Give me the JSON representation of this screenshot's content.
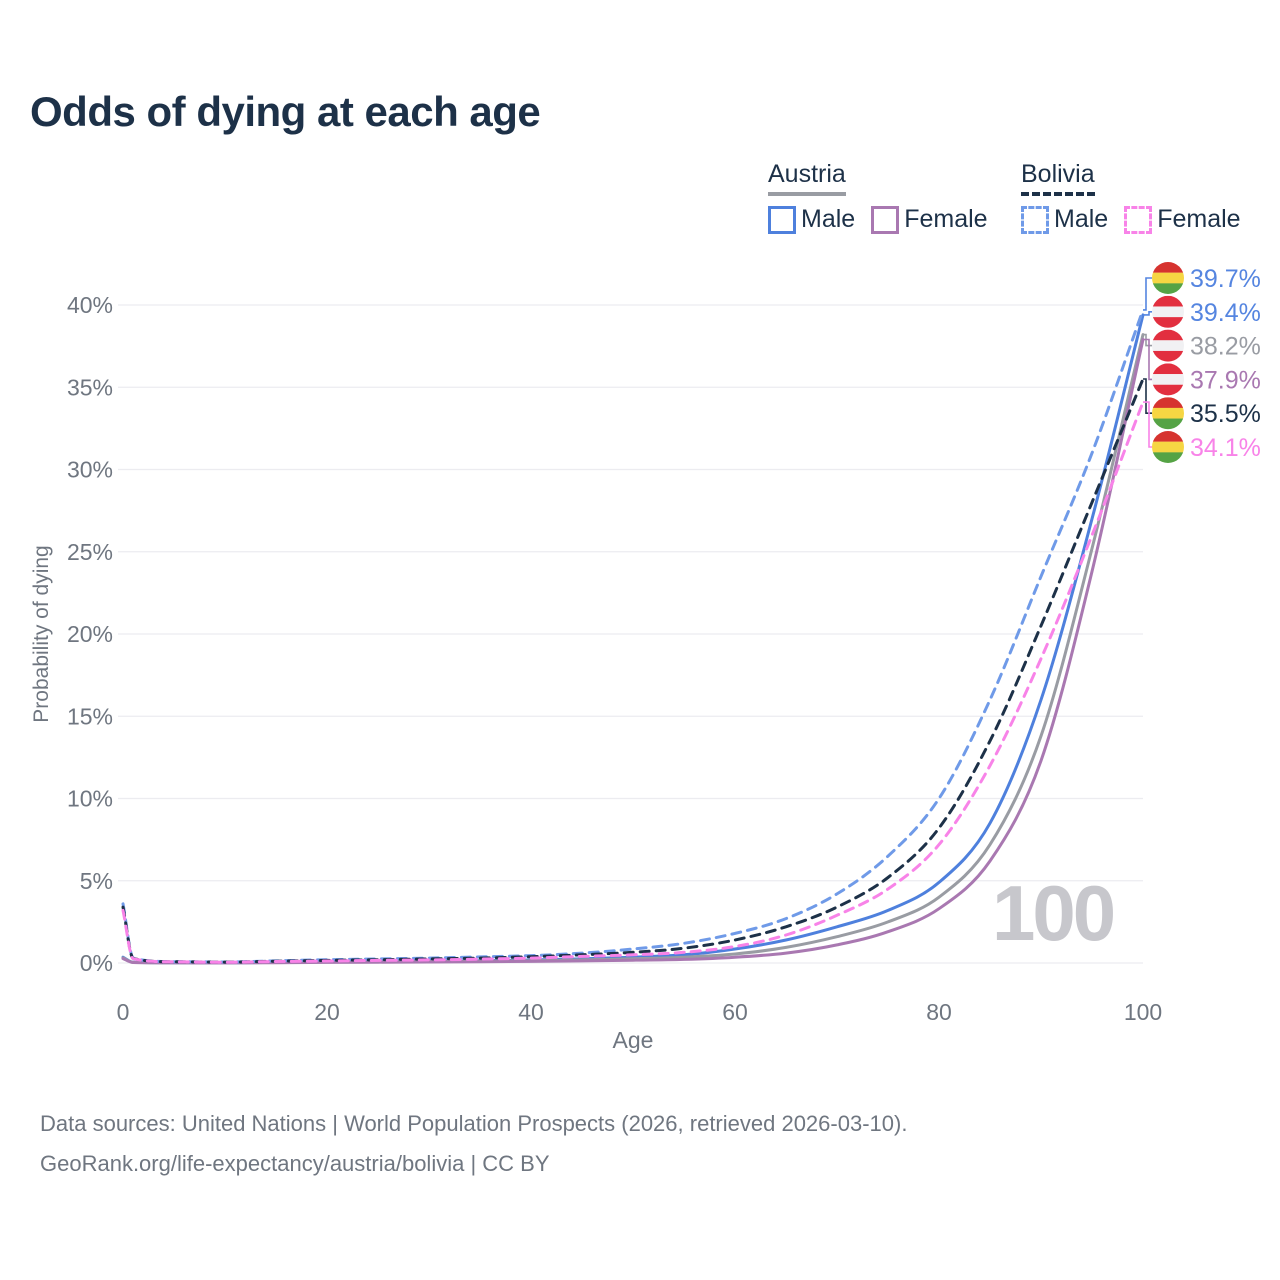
{
  "title": "Odds of dying at each age",
  "watermark": "100",
  "footer": {
    "line1": "Data sources: United Nations | World Population Prospects (2026, retrieved 2026-03-10).",
    "line2": "GeoRank.org/life-expectancy/austria/bolivia | CC BY"
  },
  "legend": {
    "groups": [
      {
        "label": "Austria",
        "underline": "solid",
        "underline_color": "#999ca3",
        "items": [
          {
            "label": "Male",
            "color": "#4e80dd",
            "dashed": false
          },
          {
            "label": "Female",
            "color": "#a978b1",
            "dashed": false
          }
        ]
      },
      {
        "label": "Bolivia",
        "underline": "dashed",
        "underline_color": "#1d3148",
        "items": [
          {
            "label": "Male",
            "color": "#6f9ae8",
            "dashed": true
          },
          {
            "label": "Female",
            "color": "#f883e8",
            "dashed": true
          }
        ]
      }
    ]
  },
  "flags": {
    "bolivia": [
      "#d6332f",
      "#f6d643",
      "#55a345"
    ],
    "austria": [
      "#e22f3f",
      "#f1f1f3",
      "#e22f3f"
    ]
  },
  "chart_data": {
    "type": "line",
    "title": "Odds of dying at each age",
    "xlabel": "Age",
    "ylabel": "Probability of dying",
    "xlim": [
      0,
      100
    ],
    "ylim": [
      0,
      40
    ],
    "xticks": [
      0,
      20,
      40,
      60,
      80,
      100
    ],
    "yticks": [
      0,
      5,
      10,
      15,
      20,
      25,
      30,
      35,
      40
    ],
    "ytick_suffix": "%",
    "grid": true,
    "legend_position": "top-right",
    "x": [
      0,
      1,
      5,
      10,
      15,
      20,
      25,
      30,
      35,
      40,
      45,
      50,
      55,
      60,
      65,
      70,
      75,
      80,
      85,
      90,
      95,
      100
    ],
    "series": [
      {
        "name": "Austria male",
        "country": "Austria",
        "sex": "Male",
        "style": "solid",
        "color": "#4e80dd",
        "values": [
          0.35,
          0.04,
          0.015,
          0.012,
          0.04,
          0.08,
          0.1,
          0.12,
          0.14,
          0.18,
          0.25,
          0.35,
          0.5,
          0.85,
          1.4,
          2.2,
          3.2,
          4.9,
          8.5,
          16.0,
          27.0,
          39.4
        ],
        "end_label": "39.4%"
      },
      {
        "name": "Austria all",
        "country": "Austria",
        "sex": "All",
        "style": "solid",
        "color": "#999ca3",
        "values": [
          0.31,
          0.035,
          0.013,
          0.01,
          0.03,
          0.06,
          0.075,
          0.09,
          0.11,
          0.14,
          0.19,
          0.26,
          0.35,
          0.55,
          0.95,
          1.6,
          2.5,
          4.0,
          7.2,
          13.8,
          25.2,
          38.2
        ],
        "end_label": "38.2%"
      },
      {
        "name": "Austria female",
        "country": "Austria",
        "sex": "Female",
        "style": "solid",
        "color": "#a978b1",
        "values": [
          0.27,
          0.03,
          0.011,
          0.009,
          0.02,
          0.035,
          0.05,
          0.06,
          0.08,
          0.1,
          0.13,
          0.17,
          0.22,
          0.35,
          0.6,
          1.1,
          1.9,
          3.3,
          6.2,
          12.3,
          23.8,
          37.9
        ],
        "end_label": "37.9%"
      },
      {
        "name": "Bolivia male",
        "country": "Bolivia",
        "sex": "Male",
        "style": "dashed",
        "color": "#6f9ae8",
        "values": [
          3.6,
          0.3,
          0.08,
          0.06,
          0.13,
          0.2,
          0.25,
          0.3,
          0.37,
          0.45,
          0.6,
          0.85,
          1.2,
          1.8,
          2.7,
          4.2,
          6.5,
          10.0,
          16.0,
          23.5,
          31.0,
          39.7
        ],
        "end_label": "39.7%"
      },
      {
        "name": "Bolivia all",
        "country": "Bolivia",
        "sex": "All",
        "style": "dashed",
        "color": "#1d3148",
        "values": [
          3.4,
          0.28,
          0.075,
          0.055,
          0.11,
          0.16,
          0.2,
          0.25,
          0.3,
          0.38,
          0.5,
          0.65,
          0.9,
          1.4,
          2.2,
          3.4,
          5.2,
          8.2,
          13.5,
          20.5,
          28.0,
          35.5
        ],
        "end_label": "35.5%"
      },
      {
        "name": "Bolivia female",
        "country": "Bolivia",
        "sex": "Female",
        "style": "dashed",
        "color": "#f883e8",
        "values": [
          3.2,
          0.26,
          0.07,
          0.05,
          0.09,
          0.12,
          0.16,
          0.19,
          0.24,
          0.3,
          0.4,
          0.5,
          0.65,
          1.0,
          1.7,
          2.9,
          4.5,
          7.2,
          12.0,
          18.5,
          26.0,
          34.1
        ],
        "end_label": "34.1%"
      }
    ],
    "end_labels": [
      {
        "label": "39.7%",
        "value": 39.7,
        "color": "#5585e0",
        "flag": "bolivia"
      },
      {
        "label": "39.4%",
        "value": 39.4,
        "color": "#5585e0",
        "flag": "austria"
      },
      {
        "label": "38.2%",
        "value": 38.2,
        "color": "#999ca3",
        "flag": "austria"
      },
      {
        "label": "37.9%",
        "value": 37.9,
        "color": "#a978b1",
        "flag": "austria"
      },
      {
        "label": "35.5%",
        "value": 35.5,
        "color": "#1d3148",
        "flag": "bolivia"
      },
      {
        "label": "34.1%",
        "value": 34.1,
        "color": "#f883e8",
        "flag": "bolivia"
      }
    ]
  }
}
